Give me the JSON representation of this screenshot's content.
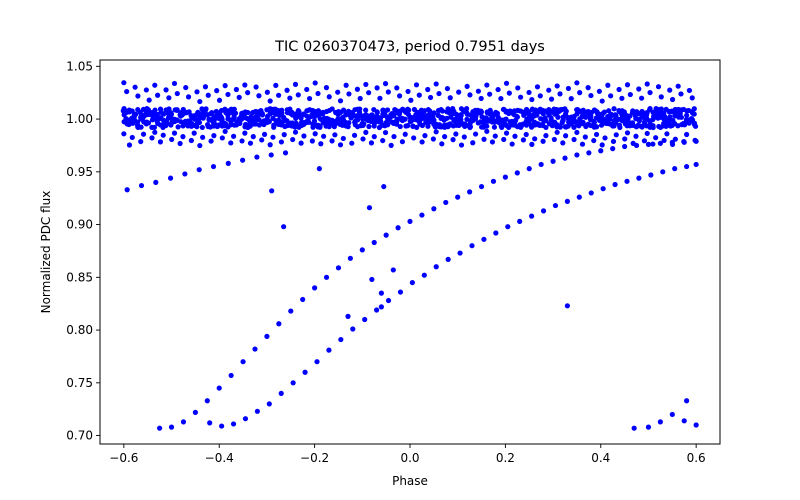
{
  "chart_data": {
    "type": "scatter",
    "title": "TIC 0260370473, period 0.7951 days",
    "xlabel": "Phase",
    "ylabel": "Normalized PDC flux",
    "xlim": [
      -0.65,
      0.65
    ],
    "ylim": [
      0.692,
      1.056
    ],
    "x_ticks": [
      -0.6,
      -0.4,
      -0.2,
      0.0,
      0.2,
      0.4,
      0.6
    ],
    "x_tick_labels": [
      "−0.6",
      "−0.4",
      "−0.2",
      "0.0",
      "0.2",
      "0.4",
      "0.6"
    ],
    "y_ticks": [
      0.7,
      0.75,
      0.8,
      0.85,
      0.9,
      0.95,
      1.0,
      1.05
    ],
    "y_tick_labels": [
      "0.70",
      "0.75",
      "0.80",
      "0.85",
      "0.90",
      "0.95",
      "1.00",
      "1.05"
    ],
    "grid": false,
    "marker_color": "#0000ff",
    "series": [
      {
        "points": [
          [
            -0.593,
            0.933
          ],
          [
            -0.563,
            0.937
          ],
          [
            -0.533,
            0.94
          ],
          [
            -0.502,
            0.944
          ],
          [
            -0.472,
            0.948
          ],
          [
            -0.442,
            0.952
          ],
          [
            -0.412,
            0.955
          ],
          [
            -0.381,
            0.958
          ],
          [
            -0.351,
            0.961
          ],
          [
            -0.321,
            0.964
          ],
          [
            -0.291,
            0.966
          ],
          [
            -0.261,
            0.968
          ],
          [
            -0.525,
            0.707
          ],
          [
            -0.5,
            0.708
          ],
          [
            -0.475,
            0.713
          ],
          [
            -0.45,
            0.722
          ],
          [
            -0.425,
            0.733
          ],
          [
            -0.4,
            0.745
          ],
          [
            -0.375,
            0.757
          ],
          [
            -0.35,
            0.77
          ],
          [
            -0.325,
            0.782
          ],
          [
            -0.3,
            0.794
          ],
          [
            -0.275,
            0.806
          ],
          [
            -0.25,
            0.818
          ],
          [
            -0.225,
            0.829
          ],
          [
            -0.2,
            0.84
          ],
          [
            -0.175,
            0.85
          ],
          [
            -0.15,
            0.859
          ],
          [
            -0.125,
            0.868
          ],
          [
            -0.1,
            0.876
          ],
          [
            -0.075,
            0.883
          ],
          [
            -0.05,
            0.89
          ],
          [
            -0.025,
            0.897
          ],
          [
            0.0,
            0.903
          ],
          [
            0.025,
            0.909
          ],
          [
            0.05,
            0.915
          ],
          [
            0.075,
            0.921
          ],
          [
            0.1,
            0.926
          ],
          [
            0.125,
            0.931
          ],
          [
            0.15,
            0.936
          ],
          [
            0.175,
            0.941
          ],
          [
            0.2,
            0.945
          ],
          [
            0.225,
            0.949
          ],
          [
            0.25,
            0.953
          ],
          [
            0.275,
            0.957
          ],
          [
            0.3,
            0.96
          ],
          [
            0.325,
            0.963
          ],
          [
            0.35,
            0.966
          ],
          [
            0.375,
            0.968
          ],
          [
            0.4,
            0.97
          ],
          [
            0.425,
            0.972
          ],
          [
            0.45,
            0.974
          ],
          [
            0.475,
            0.975
          ],
          [
            0.5,
            0.976
          ],
          [
            0.525,
            0.977
          ],
          [
            0.55,
            0.978
          ],
          [
            0.575,
            0.978
          ],
          [
            0.6,
            0.979
          ],
          [
            -0.42,
            0.712
          ],
          [
            -0.395,
            0.709
          ],
          [
            -0.37,
            0.711
          ],
          [
            -0.345,
            0.716
          ],
          [
            -0.32,
            0.723
          ],
          [
            -0.295,
            0.73
          ],
          [
            -0.27,
            0.74
          ],
          [
            -0.245,
            0.75
          ],
          [
            -0.22,
            0.76
          ],
          [
            -0.195,
            0.77
          ],
          [
            -0.17,
            0.781
          ],
          [
            -0.145,
            0.791
          ],
          [
            -0.12,
            0.801
          ],
          [
            -0.095,
            0.81
          ],
          [
            -0.07,
            0.819
          ],
          [
            -0.045,
            0.828
          ],
          [
            -0.02,
            0.836
          ],
          [
            0.005,
            0.845
          ],
          [
            0.03,
            0.852
          ],
          [
            0.055,
            0.86
          ],
          [
            0.08,
            0.867
          ],
          [
            0.105,
            0.873
          ],
          [
            0.13,
            0.88
          ],
          [
            0.155,
            0.886
          ],
          [
            0.18,
            0.892
          ],
          [
            0.205,
            0.898
          ],
          [
            0.23,
            0.903
          ],
          [
            0.255,
            0.908
          ],
          [
            0.28,
            0.913
          ],
          [
            0.305,
            0.918
          ],
          [
            0.33,
            0.922
          ],
          [
            0.355,
            0.926
          ],
          [
            0.38,
            0.93
          ],
          [
            0.405,
            0.934
          ],
          [
            0.43,
            0.938
          ],
          [
            0.455,
            0.941
          ],
          [
            0.48,
            0.944
          ],
          [
            0.505,
            0.947
          ],
          [
            0.53,
            0.95
          ],
          [
            0.555,
            0.953
          ],
          [
            0.58,
            0.955
          ],
          [
            0.6,
            0.957
          ],
          [
            0.47,
            0.707
          ],
          [
            0.5,
            0.708
          ],
          [
            0.525,
            0.713
          ],
          [
            0.55,
            0.72
          ],
          [
            0.575,
            0.714
          ],
          [
            0.58,
            0.733
          ],
          [
            0.6,
            0.71
          ],
          [
            -0.29,
            0.932
          ],
          [
            -0.265,
            0.898
          ],
          [
            -0.19,
            0.953
          ],
          [
            -0.085,
            0.916
          ],
          [
            -0.055,
            0.936
          ],
          [
            -0.08,
            0.848
          ],
          [
            -0.06,
            0.835
          ],
          [
            -0.035,
            0.857
          ],
          [
            -0.06,
            0.822
          ],
          [
            0.33,
            0.823
          ],
          [
            -0.13,
            0.813
          ]
        ]
      }
    ],
    "band": {
      "x_start": -0.6,
      "x_end": 0.6,
      "x_step": 0.0059,
      "core_center": 1.001,
      "core_halfwidth": 0.009,
      "upper_flux": 1.034,
      "lower_flux": 0.975,
      "upper_comb_period": 0.0211,
      "lower_comb_period": 0.0211
    }
  }
}
